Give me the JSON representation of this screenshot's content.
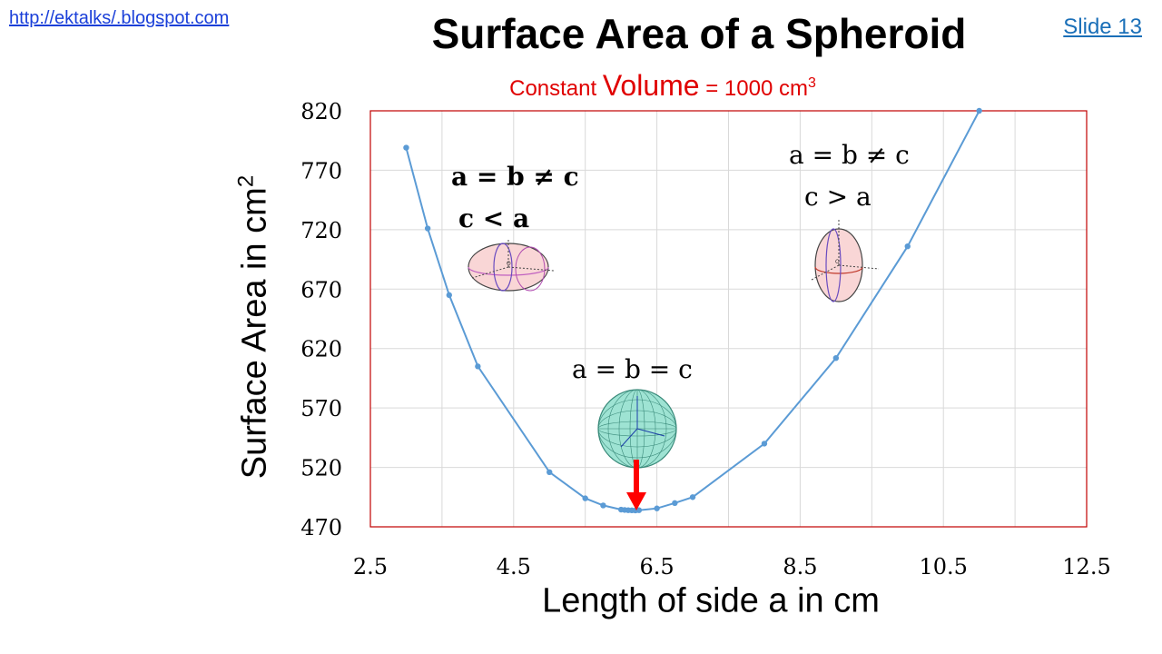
{
  "header": {
    "link_text": "http://ektalks/.blogspot.com",
    "slide_label": "Slide 13",
    "title": "Surface Area of a Spheroid",
    "subtitle_prefix": "Constant ",
    "subtitle_big": "Volume",
    "subtitle_suffix": " = 1000 cm",
    "subtitle_sup": "3"
  },
  "annotations": {
    "oblate_line1": "a = b ≠ c",
    "oblate_line2": "c < a",
    "prolate_line1": "a = b ≠ c",
    "prolate_line2": "c > a",
    "sphere_line1": "a = b = c"
  },
  "colors": {
    "series": "#5b9bd5",
    "plot_border": "#c00000",
    "arrow": "#ff0000",
    "title_accent": "#e00000"
  },
  "chart_data": {
    "type": "scatter-line",
    "xlabel": "Length of side a in cm",
    "ylabel": "Surface Area in cm",
    "ylabel_sup": "2",
    "xlim": [
      2.5,
      12.5
    ],
    "ylim": [
      470,
      820
    ],
    "xticks": [
      2.5,
      4.5,
      6.5,
      8.5,
      10.5,
      12.5
    ],
    "xtick_labels": [
      "2.5",
      "4.5",
      "6.5",
      "8.5",
      "10.5",
      "12.5"
    ],
    "yticks": [
      470,
      520,
      570,
      620,
      670,
      720,
      770,
      820
    ],
    "ytick_labels": [
      "470",
      "520",
      "570",
      "620",
      "670",
      "720",
      "770",
      "820"
    ],
    "grid": true,
    "series": [
      {
        "x": [
          3.0,
          3.3,
          3.6,
          4.0,
          5.0,
          5.5,
          5.75,
          6.0,
          6.05,
          6.1,
          6.15,
          6.2,
          6.25,
          6.5,
          6.75,
          7.0,
          8.0,
          9.0,
          10.0,
          11.0
        ],
        "y": [
          789,
          721,
          665,
          605,
          516,
          494,
          488,
          484.5,
          484.2,
          484.0,
          483.9,
          483.8,
          484.0,
          485.5,
          490,
          495,
          540,
          612,
          706,
          820
        ]
      }
    ],
    "min_marker_x": 6.2
  },
  "icons": {
    "oblate": "oblate-spheroid-icon",
    "prolate": "prolate-spheroid-icon",
    "sphere": "sphere-icon",
    "arrow": "red-down-arrow-icon"
  }
}
